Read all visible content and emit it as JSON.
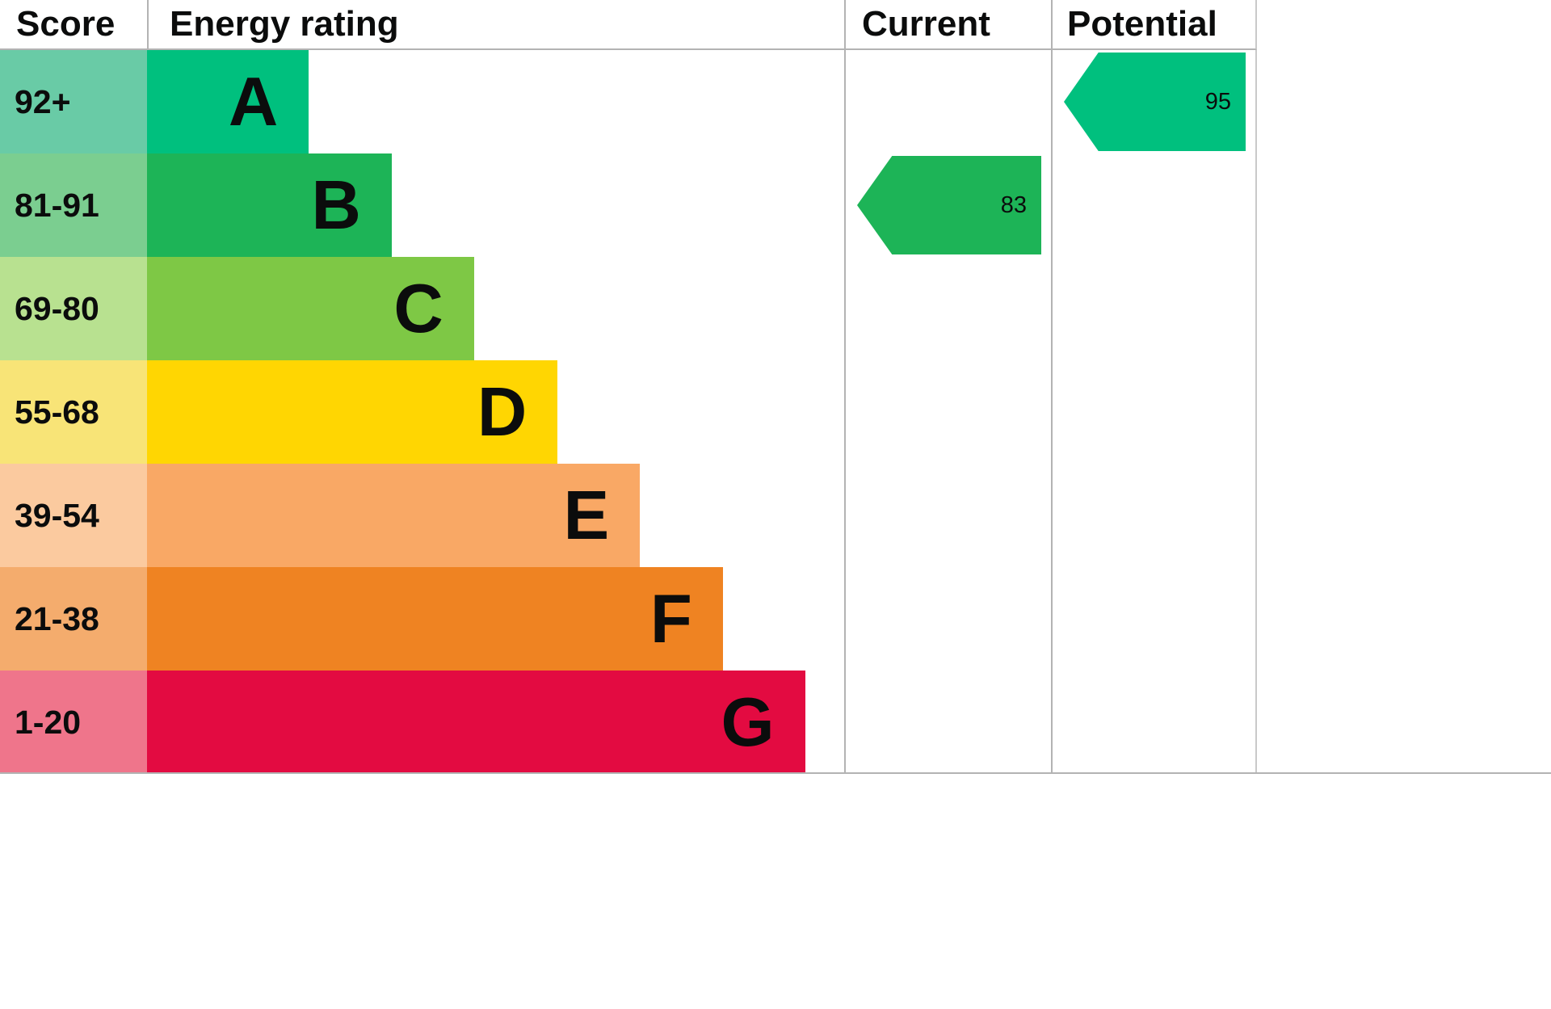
{
  "header": {
    "score": "Score",
    "energy_rating": "Energy rating",
    "current": "Current",
    "potential": "Potential"
  },
  "bands": [
    {
      "score": "92+",
      "letter": "A",
      "bar_color": "#00c07e",
      "score_bg": "#69cba6",
      "bar_width": "23.2%"
    },
    {
      "score": "81-91",
      "letter": "B",
      "bar_color": "#1db457",
      "score_bg": "#7bce90",
      "bar_width": "35.1%"
    },
    {
      "score": "69-80",
      "letter": "C",
      "bar_color": "#7ec845",
      "score_bg": "#b8e190",
      "bar_width": "46.9%"
    },
    {
      "score": "55-68",
      "letter": "D",
      "bar_color": "#ffd602",
      "score_bg": "#f8e477",
      "bar_width": "58.9%"
    },
    {
      "score": "39-54",
      "letter": "E",
      "bar_color": "#f9a865",
      "score_bg": "#fbca9f",
      "bar_width": "70.7%"
    },
    {
      "score": "21-38",
      "letter": "F",
      "bar_color": "#ef8322",
      "score_bg": "#f4ac6d",
      "bar_width": "82.6%"
    },
    {
      "score": "1-20",
      "letter": "G",
      "bar_color": "#e30b41",
      "score_bg": "#ef758b",
      "bar_width": "94.4%"
    }
  ],
  "current": {
    "value": "83",
    "band": "B",
    "band_row": 1,
    "arrow_color": "#1db457"
  },
  "potential": {
    "value": "95",
    "band": "A",
    "band_row": 0,
    "arrow_color": "#00c07e"
  },
  "chart_data": {
    "type": "bar",
    "title": "Energy rating",
    "categories": [
      "A",
      "B",
      "C",
      "D",
      "E",
      "F",
      "G"
    ],
    "score_bands": [
      "92+",
      "81-91",
      "69-80",
      "55-68",
      "39-54",
      "21-38",
      "1-20"
    ],
    "bar_widths_pct": [
      23.2,
      35.1,
      46.9,
      58.9,
      70.7,
      82.6,
      94.4
    ],
    "band_colors": [
      "#00c07e",
      "#1db457",
      "#7ec845",
      "#ffd602",
      "#f9a865",
      "#ef8322",
      "#e30b41"
    ],
    "legend_position": "top",
    "markers": [
      {
        "name": "Current",
        "value": 83,
        "band": "B"
      },
      {
        "name": "Potential",
        "value": 95,
        "band": "A"
      }
    ]
  }
}
